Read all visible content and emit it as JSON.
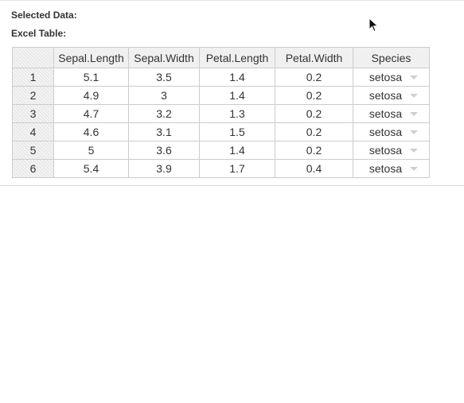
{
  "labels": {
    "selected_data": "Selected Data:",
    "excel_table": "Excel Table:"
  },
  "table": {
    "headers": [
      "Sepal.Length",
      "Sepal.Width",
      "Petal.Length",
      "Petal.Width",
      "Species"
    ],
    "rows": [
      {
        "index": "1",
        "sepal_length": "5.1",
        "sepal_width": "3.5",
        "petal_length": "1.4",
        "petal_width": "0.2",
        "species": "setosa"
      },
      {
        "index": "2",
        "sepal_length": "4.9",
        "sepal_width": "3",
        "petal_length": "1.4",
        "petal_width": "0.2",
        "species": "setosa"
      },
      {
        "index": "3",
        "sepal_length": "4.7",
        "sepal_width": "3.2",
        "petal_length": "1.3",
        "petal_width": "0.2",
        "species": "setosa"
      },
      {
        "index": "4",
        "sepal_length": "4.6",
        "sepal_width": "3.1",
        "petal_length": "1.5",
        "petal_width": "0.2",
        "species": "setosa"
      },
      {
        "index": "5",
        "sepal_length": "5",
        "sepal_width": "3.6",
        "petal_length": "1.4",
        "petal_width": "0.2",
        "species": "setosa"
      },
      {
        "index": "6",
        "sepal_length": "5.4",
        "sepal_width": "3.9",
        "petal_length": "1.7",
        "petal_width": "0.4",
        "species": "setosa"
      }
    ]
  },
  "icons": {
    "dropdown": "chevron-down-icon",
    "cursor": "mouse-pointer-icon"
  },
  "colors": {
    "header_bg": "#f0f0f0",
    "grid_border": "#cccccc",
    "caret": "#cfcfcf"
  }
}
